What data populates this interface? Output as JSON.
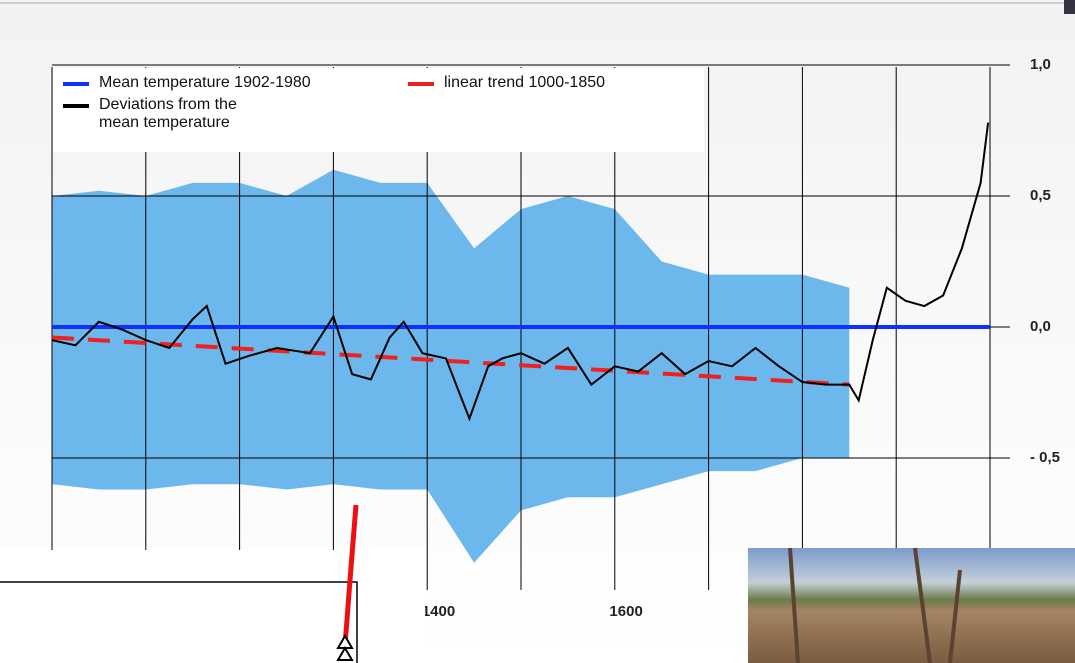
{
  "chart_data": {
    "type": "line",
    "xlim": [
      1000,
      2000
    ],
    "ylim": [
      -1.0,
      1.25
    ],
    "xticks": [
      1400,
      1600
    ],
    "xgrid": [
      1000,
      1100,
      1200,
      1300,
      1400,
      1500,
      1600,
      1700,
      1800,
      1900,
      2000
    ],
    "yticks": [
      {
        "value": 1.0,
        "label": "1,0"
      },
      {
        "value": 0.5,
        "label": "0,5"
      },
      {
        "value": 0.0,
        "label": "0,0"
      },
      {
        "value": -0.5,
        "label": "- 0,5"
      }
    ],
    "grid": true,
    "band": {
      "color": "#6cb8ec",
      "x": [
        1000,
        1050,
        1100,
        1150,
        1200,
        1250,
        1300,
        1350,
        1400,
        1450,
        1500,
        1550,
        1600,
        1650,
        1700,
        1750,
        1800,
        1850
      ],
      "upper": [
        0.5,
        0.52,
        0.5,
        0.55,
        0.55,
        0.5,
        0.6,
        0.55,
        0.55,
        0.3,
        0.45,
        0.5,
        0.45,
        0.25,
        0.2,
        0.2,
        0.2,
        0.15
      ],
      "lower": [
        -0.6,
        -0.62,
        -0.62,
        -0.6,
        -0.6,
        -0.62,
        -0.6,
        -0.62,
        -0.62,
        -0.9,
        -0.7,
        -0.65,
        -0.65,
        -0.6,
        -0.55,
        -0.55,
        -0.5,
        -0.5
      ]
    },
    "series": [
      {
        "name": "Mean temperature 1902-1980",
        "color": "#1030ff",
        "x": [
          1000,
          2000
        ],
        "values": [
          0.0,
          0.0
        ]
      },
      {
        "name": "linear trend 1000-1850",
        "color": "#ee2020",
        "dashed": true,
        "x": [
          1000,
          1850
        ],
        "values": [
          -0.04,
          -0.22
        ]
      },
      {
        "name": "Deviations from the mean temperature",
        "color": "#000000",
        "x": [
          1000,
          1025,
          1050,
          1075,
          1100,
          1125,
          1150,
          1165,
          1185,
          1210,
          1240,
          1275,
          1300,
          1320,
          1340,
          1360,
          1375,
          1395,
          1420,
          1445,
          1465,
          1480,
          1500,
          1525,
          1550,
          1575,
          1600,
          1625,
          1650,
          1675,
          1700,
          1725,
          1750,
          1775,
          1800,
          1825,
          1850,
          1860,
          1875,
          1890,
          1910,
          1930,
          1950,
          1970,
          1990,
          1998
        ],
        "values": [
          -0.05,
          -0.07,
          0.02,
          -0.01,
          -0.05,
          -0.08,
          0.03,
          0.08,
          -0.14,
          -0.11,
          -0.08,
          -0.1,
          0.04,
          -0.18,
          -0.2,
          -0.04,
          0.02,
          -0.1,
          -0.12,
          -0.35,
          -0.15,
          -0.12,
          -0.1,
          -0.14,
          -0.08,
          -0.22,
          -0.15,
          -0.17,
          -0.1,
          -0.18,
          -0.13,
          -0.15,
          -0.08,
          -0.15,
          -0.21,
          -0.22,
          -0.22,
          -0.28,
          -0.05,
          0.15,
          0.1,
          0.08,
          0.12,
          0.3,
          0.55,
          0.78
        ]
      }
    ]
  }
}
